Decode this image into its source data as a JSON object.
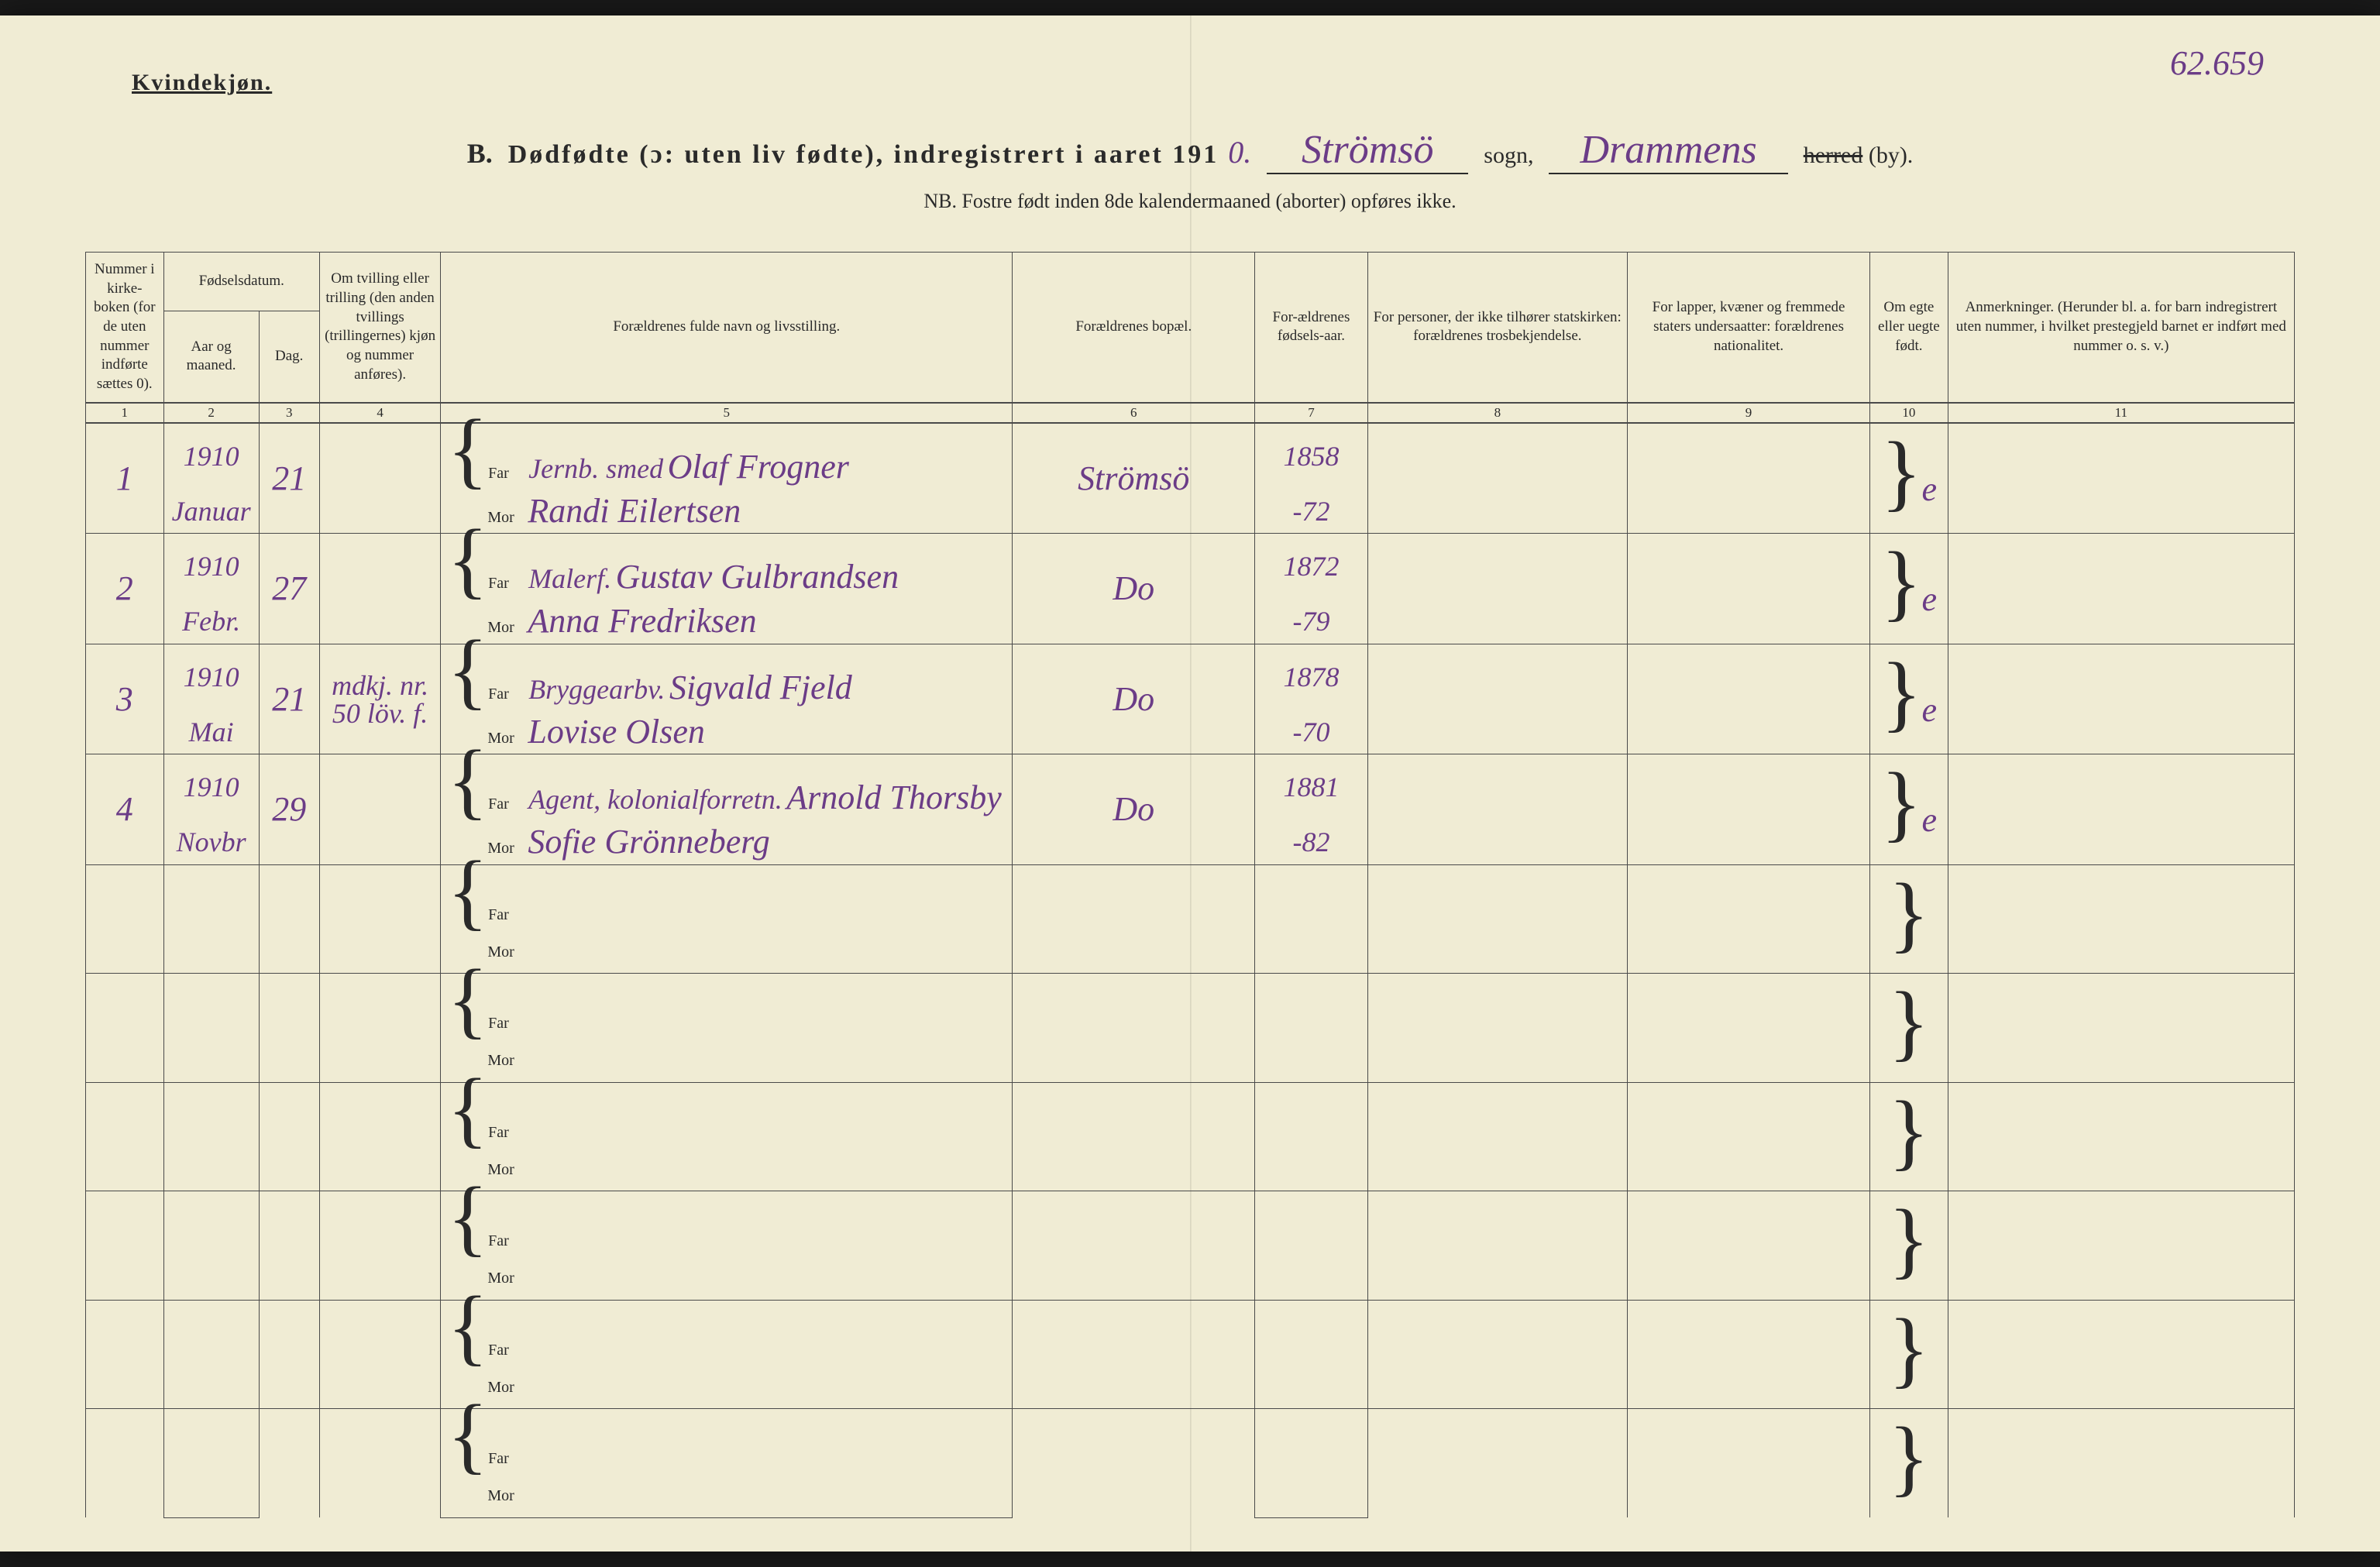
{
  "header": {
    "gender_label": "Kvindekjøn.",
    "page_number_handwritten": "62.659",
    "title_prefix": "B.",
    "title_main": "Dødfødte (ɔ: uten liv fødte), indregistrert i aaret 191",
    "year_suffix_hw": "0.",
    "sogn_hw": "Strömsö",
    "sogn_label": "sogn,",
    "herred_hw": "Drammens",
    "herred_strike": "herred",
    "herred_suffix": "(by).",
    "subtitle": "NB. Fostre født inden 8de kalendermaaned (aborter) opføres ikke."
  },
  "columns": {
    "c1": "Nummer i kirke-boken (for de uten nummer indførte sættes 0).",
    "c2_group": "Fødselsdatum.",
    "c2a": "Aar og maaned.",
    "c2b": "Dag.",
    "c3": "Om tvilling eller trilling (den anden tvillings (trillingernes) kjøn og nummer anføres).",
    "c4": "Forældrenes fulde navn og livsstilling.",
    "c5": "Forældrenes bopæl.",
    "c6": "For-ældrenes fødsels-aar.",
    "c7": "For personer, der ikke tilhører statskirken: forældrenes trosbekjendelse.",
    "c8": "For lapper, kvæner og fremmede staters undersaatter: forældrenes nationalitet.",
    "c9": "Om egte eller uegte født.",
    "c10": "Anmerkninger. (Herunder bl. a. for barn indregistrert uten nummer, i hvilket prestegjeld barnet er indført med nummer o. s. v.)",
    "nums": [
      "1",
      "2",
      "3",
      "4",
      "5",
      "6",
      "7",
      "8",
      "9",
      "10",
      "11"
    ]
  },
  "labels": {
    "far": "Far",
    "mor": "Mor"
  },
  "entries": [
    {
      "num": "1",
      "year": "1910",
      "month": "Januar",
      "day": "21",
      "tvilling": "",
      "far_title": "Jernb. smed",
      "far_name": "Olaf Frogner",
      "mor_name": "Randi Eilertsen",
      "bopel": "Strömsö",
      "far_aar": "1858",
      "mor_aar": "-72",
      "egte": "e"
    },
    {
      "num": "2",
      "year": "1910",
      "month": "Febr.",
      "day": "27",
      "tvilling": "",
      "far_title": "Malerf.",
      "far_name": "Gustav Gulbrandsen",
      "mor_name": "Anna Fredriksen",
      "bopel": "Do",
      "far_aar": "1872",
      "mor_aar": "-79",
      "egte": "e"
    },
    {
      "num": "3",
      "year": "1910",
      "month": "Mai",
      "day": "21",
      "tvilling": "mdkj. nr. 50 löv. f.",
      "far_title": "Bryggearbv.",
      "far_name": "Sigvald Fjeld",
      "mor_name": "Lovise Olsen",
      "bopel": "Do",
      "far_aar": "1878",
      "mor_aar": "-70",
      "egte": "e"
    },
    {
      "num": "4",
      "year": "1910",
      "month": "Novbr",
      "day": "29",
      "tvilling": "",
      "far_title": "Agent, kolonialforretn.",
      "far_name": "Arnold Thorsby",
      "mor_name": "Sofie Grönneberg",
      "bopel": "Do",
      "far_aar": "1881",
      "mor_aar": "-82",
      "egte": "e"
    }
  ],
  "empty_rows": 6,
  "style": {
    "paper_bg": "#f0ecd4",
    "ink_print": "#2a2a2a",
    "ink_hw": "#6b3c87",
    "border": "#4a4a4a",
    "hw_font": "Brush Script MT",
    "print_font": "Georgia",
    "title_fontsize": 34,
    "header_fontsize": 19,
    "hw_fontsize": 44
  }
}
